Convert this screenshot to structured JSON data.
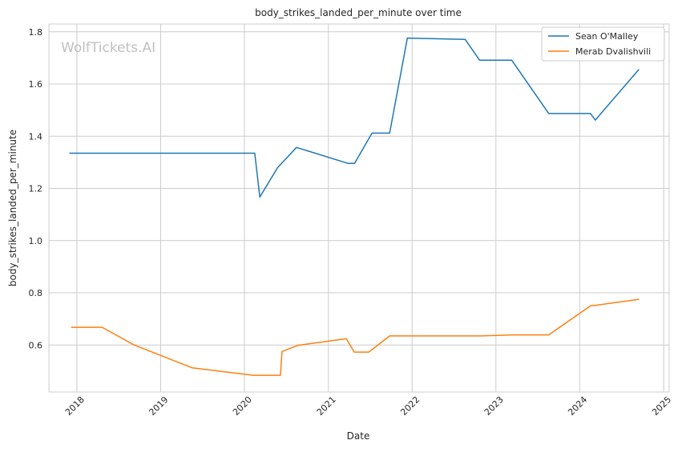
{
  "chart_data": {
    "type": "line",
    "title": "body_strikes_landed_per_minute over time",
    "xlabel": "Date",
    "ylabel": "body_strikes_landed_per_minute",
    "watermark": "WolfTickets.AI",
    "xlim": [
      "2017-09-01",
      "2025-01-25"
    ],
    "ylim": [
      0.42,
      1.83
    ],
    "x_ticks": [
      "2018",
      "2019",
      "2020",
      "2021",
      "2022",
      "2023",
      "2024",
      "2025"
    ],
    "y_ticks": [
      "0.6",
      "0.8",
      "1.0",
      "1.2",
      "1.4",
      "1.6",
      "1.8"
    ],
    "grid": true,
    "legend_position": "top-right",
    "series": [
      {
        "name": "Sean O'Malley",
        "color": "#1f77b4",
        "points": [
          [
            "2017-12-01",
            1.335
          ],
          [
            "2020-02-15",
            1.335
          ],
          [
            "2020-03-08",
            1.167
          ],
          [
            "2020-05-25",
            1.28
          ],
          [
            "2020-08-15",
            1.357
          ],
          [
            "2021-03-27",
            1.296
          ],
          [
            "2021-04-25",
            1.296
          ],
          [
            "2021-07-10",
            1.412
          ],
          [
            "2021-09-25",
            1.412
          ],
          [
            "2021-12-11",
            1.776
          ],
          [
            "2022-08-20",
            1.771
          ],
          [
            "2022-10-22",
            1.691
          ],
          [
            "2023-03-11",
            1.691
          ],
          [
            "2023-08-19",
            1.487
          ],
          [
            "2024-02-17",
            1.487
          ],
          [
            "2024-03-09",
            1.462
          ],
          [
            "2024-09-14",
            1.655
          ]
        ]
      },
      {
        "name": "Merab Dvalishvili",
        "color": "#ff7f0e",
        "points": [
          [
            "2017-12-09",
            0.668
          ],
          [
            "2018-04-21",
            0.668
          ],
          [
            "2018-09-08",
            0.6
          ],
          [
            "2019-05-18",
            0.513
          ],
          [
            "2020-02-08",
            0.484
          ],
          [
            "2020-06-06",
            0.484
          ],
          [
            "2020-06-13",
            0.575
          ],
          [
            "2020-08-22",
            0.599
          ],
          [
            "2021-03-20",
            0.624
          ],
          [
            "2021-04-24",
            0.573
          ],
          [
            "2021-06-26",
            0.573
          ],
          [
            "2021-09-25",
            0.635
          ],
          [
            "2022-10-29",
            0.635
          ],
          [
            "2023-03-11",
            0.639
          ],
          [
            "2023-08-19",
            0.639
          ],
          [
            "2024-02-17",
            0.75
          ],
          [
            "2024-03-09",
            0.752
          ],
          [
            "2024-09-14",
            0.775
          ]
        ]
      }
    ]
  }
}
